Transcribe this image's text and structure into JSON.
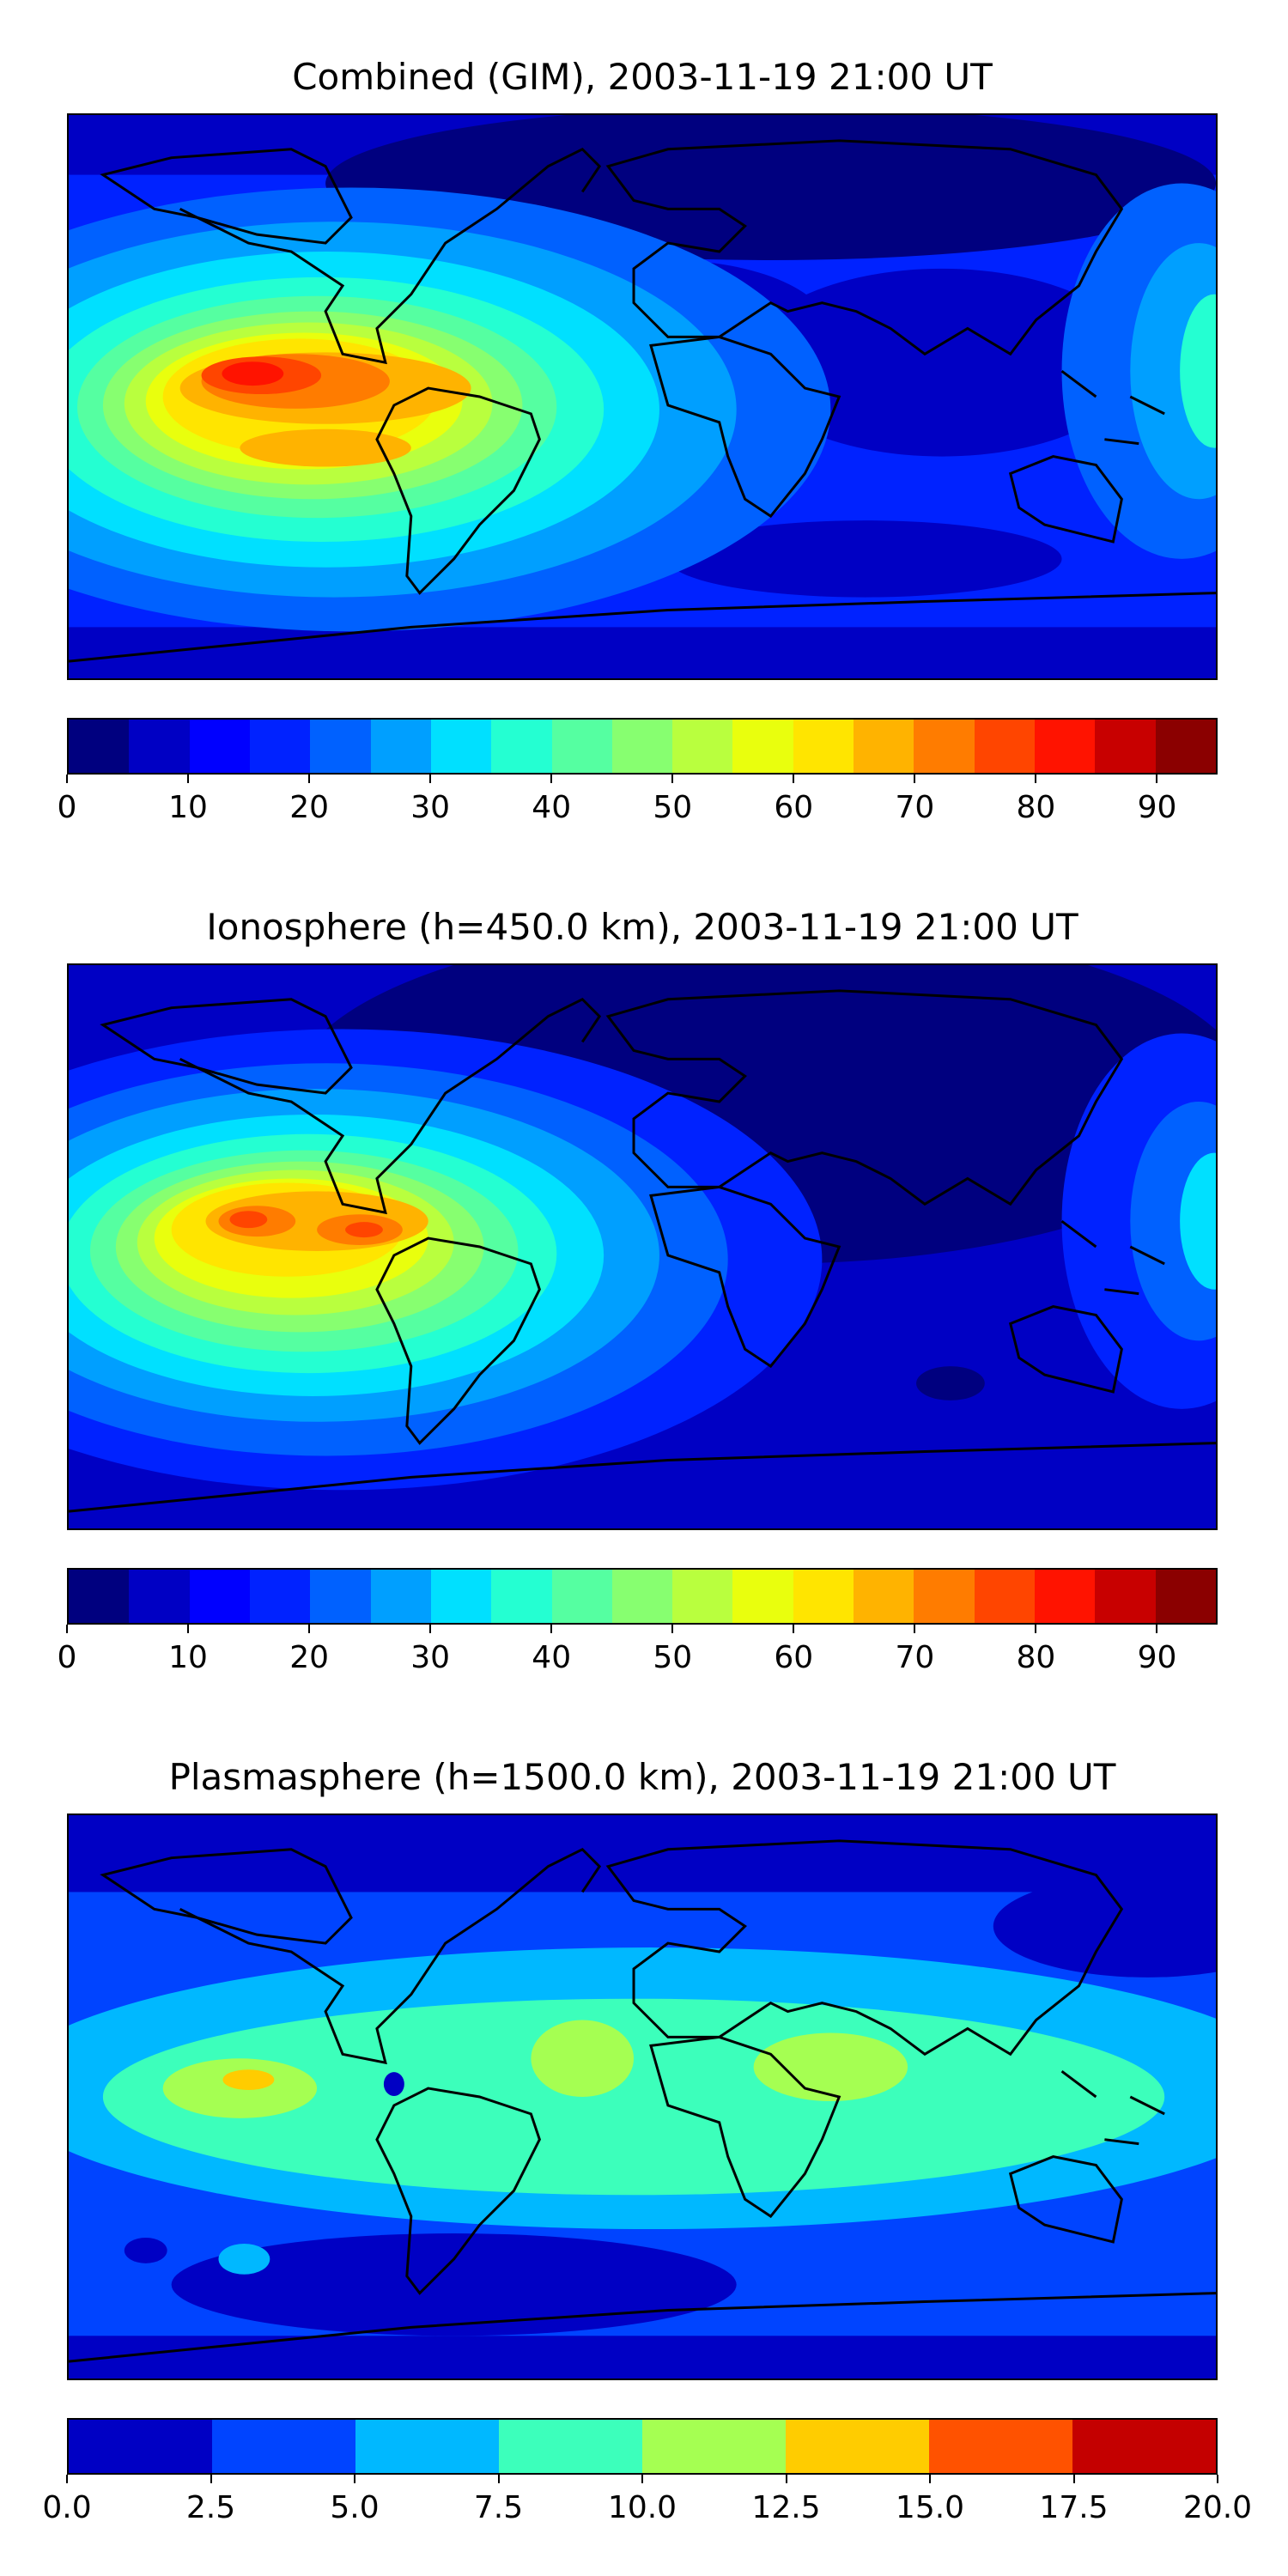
{
  "panels": [
    {
      "title": "Combined (GIM), 2003-11-19 21:00 UT",
      "colorbar": {
        "min": 0,
        "max": 95,
        "colors": [
          "#00007f",
          "#0000c4",
          "#0000ff",
          "#0022ff",
          "#0061ff",
          "#009fff",
          "#00e0ff",
          "#24ffd2",
          "#55ffa1",
          "#87ff70",
          "#b9ff3e",
          "#e9ff0d",
          "#ffe500",
          "#ffb300",
          "#ff7c00",
          "#ff4500",
          "#ff1300",
          "#c80000",
          "#8b0000"
        ],
        "tick_values": [
          0,
          10,
          20,
          30,
          40,
          50,
          60,
          70,
          80,
          90
        ],
        "tick_labels": [
          "0",
          "10",
          "20",
          "30",
          "40",
          "50",
          "60",
          "70",
          "80",
          "90"
        ]
      }
    },
    {
      "title": "Ionosphere  (h=450.0 km), 2003-11-19 21:00 UT",
      "colorbar": {
        "min": 0,
        "max": 95,
        "colors": [
          "#00007f",
          "#0000c4",
          "#0000ff",
          "#0022ff",
          "#0061ff",
          "#009fff",
          "#00e0ff",
          "#24ffd2",
          "#55ffa1",
          "#87ff70",
          "#b9ff3e",
          "#e9ff0d",
          "#ffe500",
          "#ffb300",
          "#ff7c00",
          "#ff4500",
          "#ff1300",
          "#c80000",
          "#8b0000"
        ],
        "tick_values": [
          0,
          10,
          20,
          30,
          40,
          50,
          60,
          70,
          80,
          90
        ],
        "tick_labels": [
          "0",
          "10",
          "20",
          "30",
          "40",
          "50",
          "60",
          "70",
          "80",
          "90"
        ]
      }
    },
    {
      "title": "Plasmasphere (h=1500.0 km), 2003-11-19 21:00 UT",
      "colorbar": {
        "min": 0,
        "max": 20,
        "colors": [
          "#0000c4",
          "#0044ff",
          "#00b8ff",
          "#3cffbb",
          "#a5ff52",
          "#ffcc00",
          "#ff5200",
          "#c40000"
        ],
        "tick_values": [
          0,
          2.5,
          5,
          7.5,
          10,
          12.5,
          15,
          17.5,
          20
        ],
        "tick_labels": [
          "0.0",
          "2.5",
          "5.0",
          "7.5",
          "10.0",
          "12.5",
          "15.0",
          "17.5",
          "20.0"
        ]
      }
    }
  ]
}
